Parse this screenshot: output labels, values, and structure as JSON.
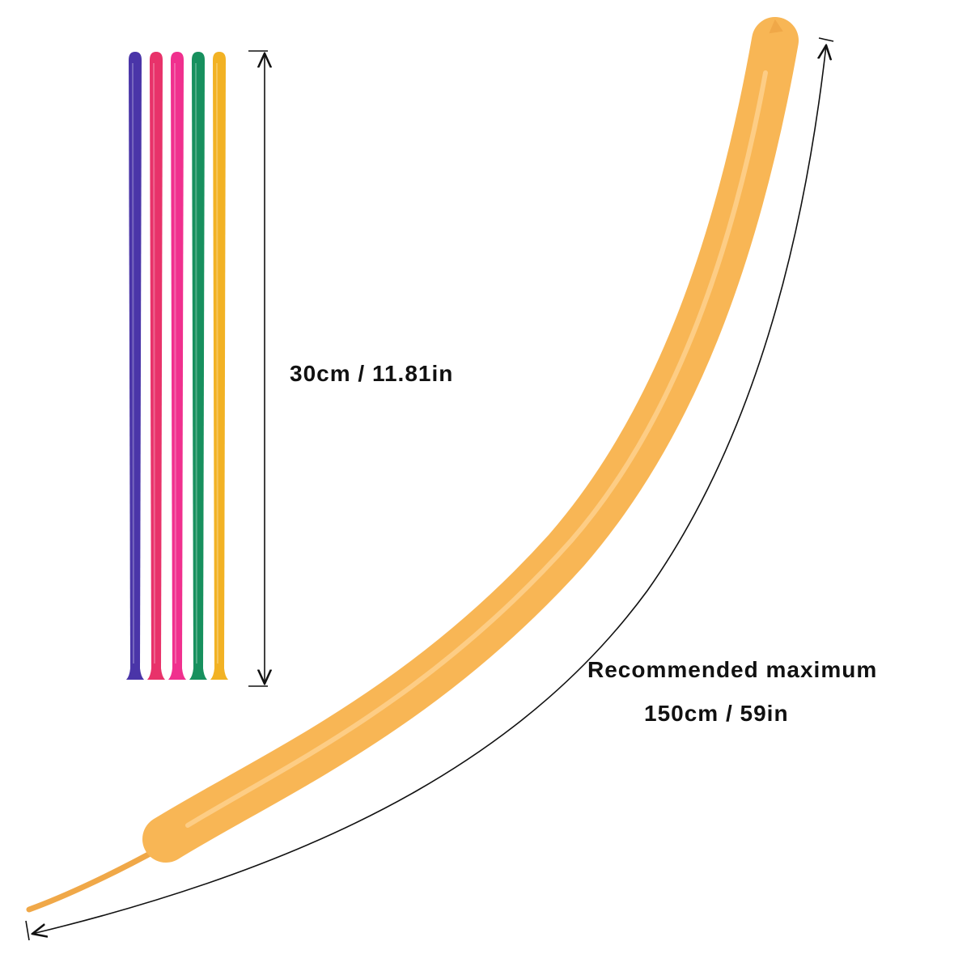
{
  "deflated": {
    "length_label": "30cm / 11.81in",
    "balloons": [
      {
        "color": "#4a35a8"
      },
      {
        "color": "#e8326a"
      },
      {
        "color": "#f0308e"
      },
      {
        "color": "#17905e"
      },
      {
        "color": "#f2b224"
      }
    ]
  },
  "inflated": {
    "color": "#f8b655",
    "label_line1": "Recommended maximum",
    "label_line2": "150cm / 59in"
  }
}
